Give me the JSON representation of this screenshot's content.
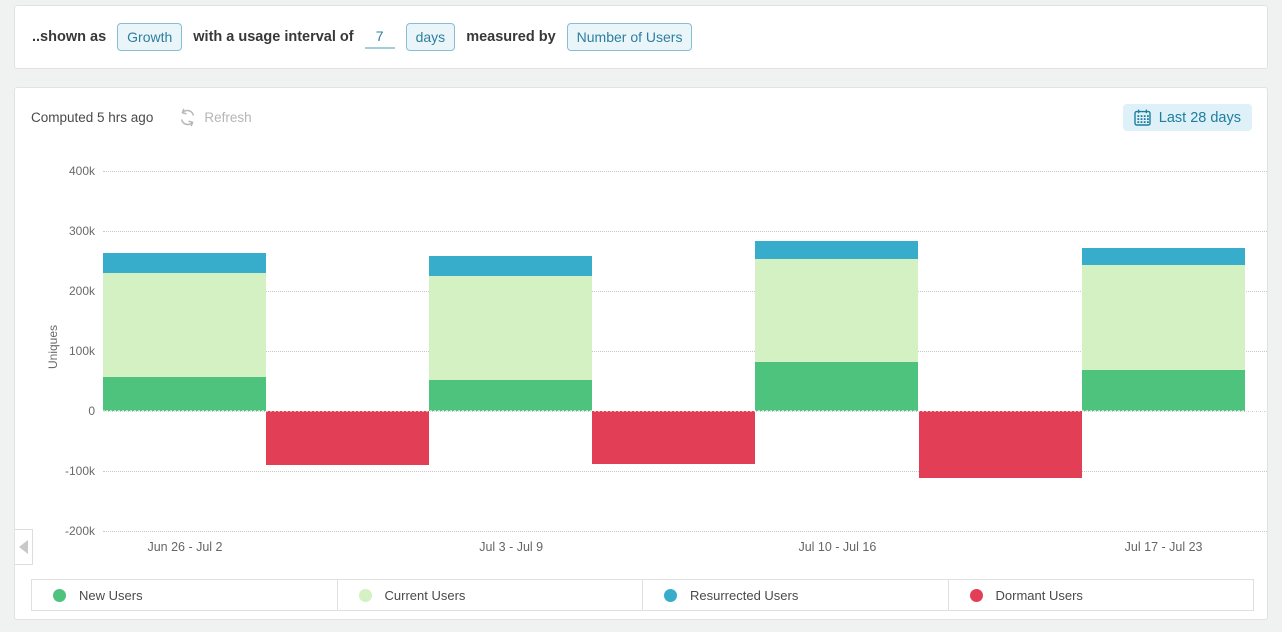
{
  "filter_bar": {
    "prefix": "..shown as",
    "shown_as_value": "Growth",
    "interval_text": "with a usage interval of",
    "interval_value": "7",
    "interval_unit": "days",
    "measured_text": "measured by",
    "measured_value": "Number of Users"
  },
  "chart_card": {
    "computed_text": "Computed 5 hrs ago",
    "refresh_label": "Refresh",
    "date_range_label": "Last 28 days"
  },
  "icons": {
    "refresh": "circular-arrows",
    "date_range": "calendar",
    "chart_pager": "chevron-left"
  },
  "colors": {
    "accent_teal_text": "#2d7f9f",
    "accent_teal_border": "#88bed3",
    "accent_teal_bg": "#eaf5fa",
    "date_range_bg": "#def0f8",
    "date_range_text": "#1f7e9e",
    "new_users": "#4ec37e",
    "current_users": "#d3f1c2",
    "resurrected_users": "#38adcb",
    "dormant_users": "#e23e56"
  },
  "chart_data": {
    "type": "bar",
    "stacked": true,
    "ylabel": "Uniques",
    "ylim": [
      -200000,
      400000
    ],
    "grid": "horizontal-dotted",
    "legend_position": "bottom",
    "categories": [
      "Jun 26 - Jul 2",
      "Jul 3 - Jul 9",
      "Jul 10 - Jul 16",
      "Jul 17 - Jul 23"
    ],
    "yticks": [
      {
        "label": "400k",
        "value": 400000
      },
      {
        "label": "300k",
        "value": 300000
      },
      {
        "label": "200k",
        "value": 200000
      },
      {
        "label": "100k",
        "value": 100000
      },
      {
        "label": "0",
        "value": 0
      },
      {
        "label": "-100k",
        "value": -100000
      },
      {
        "label": "-200k",
        "value": -200000
      }
    ],
    "series": [
      {
        "name": "New Users",
        "color": "#4ec37e",
        "values": [
          56000,
          51000,
          82000,
          68000
        ]
      },
      {
        "name": "Current Users",
        "color": "#d3f1c2",
        "values": [
          174000,
          174000,
          172000,
          175000
        ]
      },
      {
        "name": "Resurrected Users",
        "color": "#38adcb",
        "values": [
          33000,
          33000,
          30000,
          29000
        ]
      },
      {
        "name": "Dormant Users",
        "color": "#e23e56",
        "values": [
          -90000,
          -88000,
          -112000,
          null
        ],
        "between_periods": true
      }
    ]
  }
}
